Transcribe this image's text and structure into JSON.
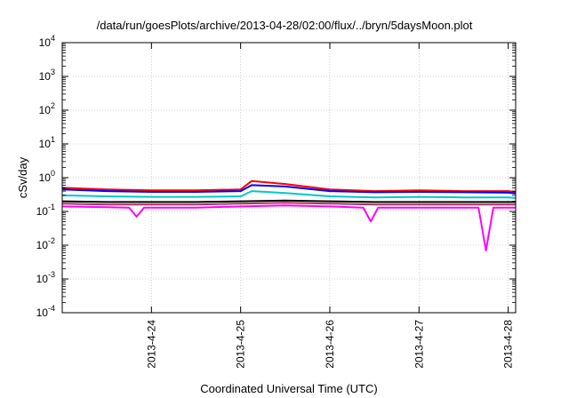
{
  "chart_data": {
    "type": "line",
    "title": "/data/run/goesPlots/archive/2013-04-28/02:00/flux/../bryn/5daysMoon.plot",
    "xlabel": "Coordinated Universal Time (UTC)",
    "ylabel": "cSv/day",
    "yscale": "log",
    "ylim": [
      0.0001,
      10000
    ],
    "xlim": [
      "2013-04-23 00:00",
      "2013-04-28 02:00"
    ],
    "x_ticks": [
      "2013-4-24",
      "2013-4-25",
      "2013-4-26",
      "2013-4-27",
      "2013-4-28"
    ],
    "y_ticks": [
      {
        "base": "10",
        "exp": "4",
        "value": 10000
      },
      {
        "base": "10",
        "exp": "3",
        "value": 1000
      },
      {
        "base": "10",
        "exp": "2",
        "value": 100
      },
      {
        "base": "10",
        "exp": "1",
        "value": 10
      },
      {
        "base": "10",
        "exp": "0",
        "value": 1
      },
      {
        "base": "10",
        "exp": "-1",
        "value": 0.1
      },
      {
        "base": "10",
        "exp": "-2",
        "value": 0.01
      },
      {
        "base": "10",
        "exp": "-3",
        "value": 0.001
      },
      {
        "base": "10",
        "exp": "-4",
        "value": 0.0001
      }
    ],
    "grid": true,
    "legend": "none",
    "series": [
      {
        "color": "#ff0000",
        "x": [
          "2013-04-23 00:00",
          "2013-04-23 12:00",
          "2013-04-24 00:00",
          "2013-04-24 12:00",
          "2013-04-25 00:00",
          "2013-04-25 03:00",
          "2013-04-25 12:00",
          "2013-04-26 00:00",
          "2013-04-26 12:00",
          "2013-04-27 00:00",
          "2013-04-27 12:00",
          "2013-04-28 00:00",
          "2013-04-28 02:00"
        ],
        "values": [
          0.5,
          0.45,
          0.42,
          0.42,
          0.45,
          0.8,
          0.65,
          0.45,
          0.4,
          0.42,
          0.4,
          0.4,
          0.38
        ]
      },
      {
        "color": "#0000ff",
        "x": [
          "2013-04-23 00:00",
          "2013-04-23 12:00",
          "2013-04-24 00:00",
          "2013-04-24 12:00",
          "2013-04-25 00:00",
          "2013-04-25 03:00",
          "2013-04-25 12:00",
          "2013-04-26 00:00",
          "2013-04-26 12:00",
          "2013-04-27 00:00",
          "2013-04-27 12:00",
          "2013-04-28 00:00",
          "2013-04-28 02:00"
        ],
        "values": [
          0.45,
          0.4,
          0.38,
          0.38,
          0.4,
          0.6,
          0.55,
          0.4,
          0.37,
          0.38,
          0.37,
          0.36,
          0.34
        ]
      },
      {
        "color": "#00c8c8",
        "x": [
          "2013-04-23 00:00",
          "2013-04-23 12:00",
          "2013-04-24 00:00",
          "2013-04-24 12:00",
          "2013-04-25 00:00",
          "2013-04-25 03:00",
          "2013-04-25 12:00",
          "2013-04-26 00:00",
          "2013-04-26 12:00",
          "2013-04-27 00:00",
          "2013-04-27 12:00",
          "2013-04-28 00:00",
          "2013-04-28 02:00"
        ],
        "values": [
          0.3,
          0.28,
          0.27,
          0.27,
          0.28,
          0.4,
          0.35,
          0.28,
          0.26,
          0.27,
          0.26,
          0.26,
          0.25
        ]
      },
      {
        "color": "#000000",
        "x": [
          "2013-04-23 00:00",
          "2013-04-23 12:00",
          "2013-04-24 00:00",
          "2013-04-24 12:00",
          "2013-04-25 00:00",
          "2013-04-25 12:00",
          "2013-04-26 00:00",
          "2013-04-26 12:00",
          "2013-04-27 00:00",
          "2013-04-27 12:00",
          "2013-04-28 00:00",
          "2013-04-28 02:00"
        ],
        "values": [
          0.2,
          0.19,
          0.19,
          0.19,
          0.2,
          0.21,
          0.2,
          0.19,
          0.19,
          0.19,
          0.19,
          0.19
        ]
      },
      {
        "color": "#b03060",
        "x": [
          "2013-04-23 00:00",
          "2013-04-23 12:00",
          "2013-04-24 00:00",
          "2013-04-24 12:00",
          "2013-04-25 00:00",
          "2013-04-25 12:00",
          "2013-04-26 00:00",
          "2013-04-26 12:00",
          "2013-04-27 00:00",
          "2013-04-27 12:00",
          "2013-04-28 00:00",
          "2013-04-28 02:00"
        ],
        "values": [
          0.17,
          0.16,
          0.16,
          0.16,
          0.17,
          0.18,
          0.17,
          0.16,
          0.16,
          0.16,
          0.16,
          0.16
        ]
      },
      {
        "color": "#ff00ff",
        "x": [
          "2013-04-23 00:00",
          "2013-04-23 18:00",
          "2013-04-23 20:00",
          "2013-04-23 22:00",
          "2013-04-24 12:00",
          "2013-04-25 00:00",
          "2013-04-25 12:00",
          "2013-04-26 00:00",
          "2013-04-26 09:00",
          "2013-04-26 11:00",
          "2013-04-26 13:00",
          "2013-04-27 00:00",
          "2013-04-27 16:00",
          "2013-04-27 18:00",
          "2013-04-27 20:00",
          "2013-04-28 00:00",
          "2013-04-28 02:00"
        ],
        "values": [
          0.14,
          0.13,
          0.07,
          0.13,
          0.13,
          0.14,
          0.15,
          0.14,
          0.13,
          0.05,
          0.13,
          0.13,
          0.13,
          0.007,
          0.13,
          0.13,
          0.13
        ]
      }
    ]
  }
}
